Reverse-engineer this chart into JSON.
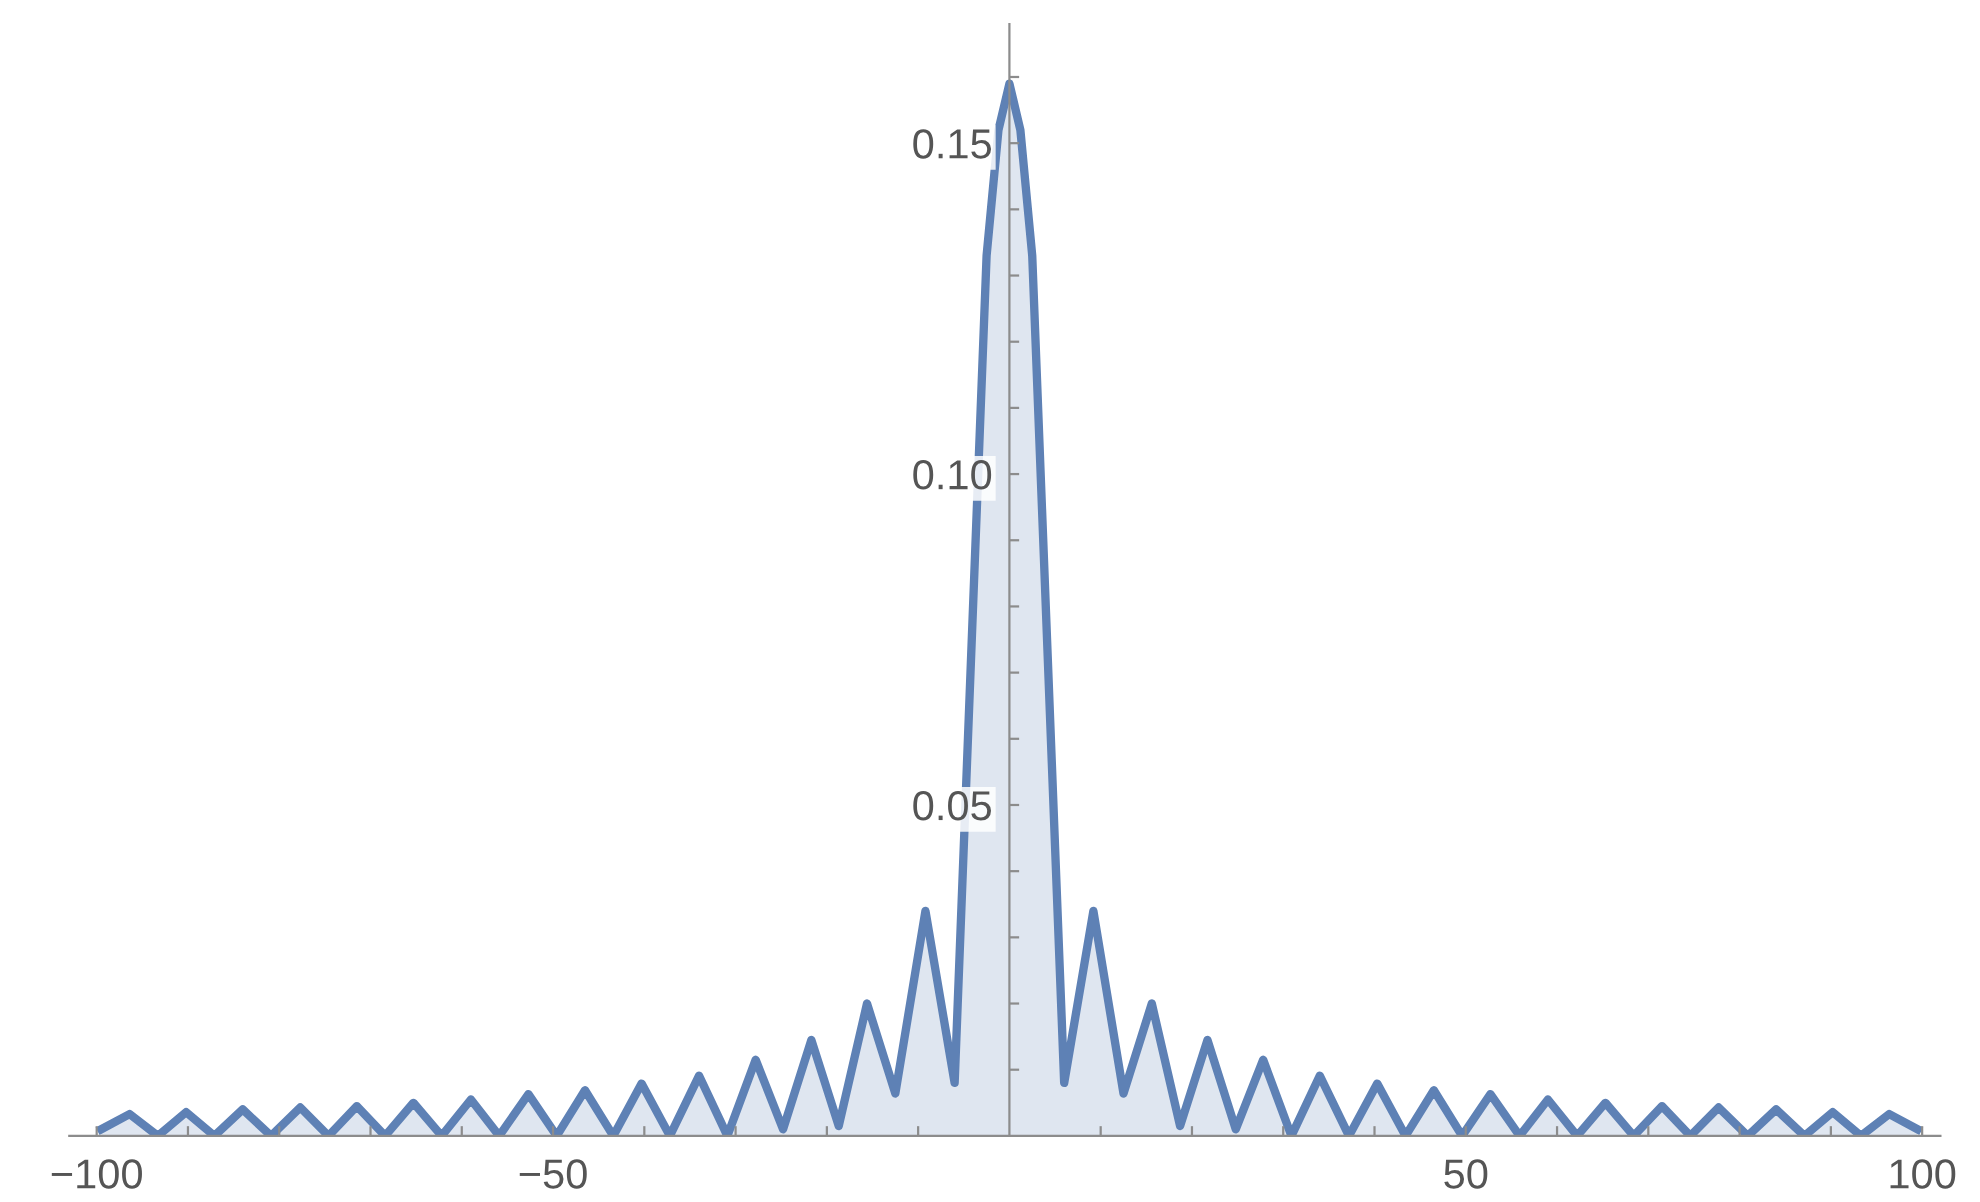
{
  "chart_data": {
    "type": "area",
    "x": [
      -99.5,
      -96.4,
      -93.3,
      -90.2,
      -87.1,
      -84,
      -80.9,
      -77.7,
      -74.6,
      -71.5,
      -68.4,
      -65.3,
      -62.2,
      -59,
      -55.9,
      -52.7,
      -49.6,
      -46.5,
      -43.4,
      -40.3,
      -37.2,
      -34,
      -30.9,
      -27.8,
      -24.8,
      -21.7,
      -18.7,
      -15.6,
      -12.5,
      -9.2,
      -6,
      -2.5,
      -1.2,
      0,
      1.2,
      2.5,
      6,
      9.2,
      12.5,
      15.6,
      18.7,
      21.7,
      24.8,
      27.8,
      30.9,
      34,
      37.2,
      40.3,
      43.4,
      46.5,
      49.6,
      52.7,
      55.9,
      59,
      62.2,
      65.3,
      68.4,
      71.5,
      74.6,
      77.7,
      80.9,
      84,
      87.1,
      90.2,
      93.3,
      96.4,
      99.5
    ],
    "series": [
      {
        "color": "#5e81b5",
        "values": [
          0.001,
          0.0033,
          0,
          0.0036,
          0,
          0.004,
          0,
          0.0043,
          0,
          0.0045,
          0,
          0.005,
          0,
          0.0055,
          0,
          0.0063,
          0,
          0.0069,
          0,
          0.0079,
          0,
          0.0091,
          0,
          0.0115,
          0.001,
          0.0145,
          0.0015,
          0.02,
          0.0064,
          0.034,
          0.008,
          0.133,
          0.152,
          0.159,
          0.152,
          0.133,
          0.008,
          0.034,
          0.0064,
          0.02,
          0.0015,
          0.0145,
          0.001,
          0.0115,
          0,
          0.0091,
          0,
          0.0079,
          0,
          0.0069,
          0,
          0.0063,
          0,
          0.0055,
          0,
          0.005,
          0,
          0.0045,
          0,
          0.0043,
          0,
          0.004,
          0,
          0.0036,
          0,
          0.0033,
          0.001
        ]
      }
    ],
    "xlim": [
      -103,
      102
    ],
    "ylim": [
      0,
      0.168
    ],
    "xticks": [
      -100,
      {
        "value": -90,
        "label": null
      },
      {
        "value": -80,
        "label": null
      },
      {
        "value": -70,
        "label": null
      },
      {
        "value": -60,
        "label": null
      },
      -50,
      {
        "value": -40,
        "label": null
      },
      {
        "value": -30,
        "label": null
      },
      {
        "value": -20,
        "label": null
      },
      {
        "value": -10,
        "label": null
      },
      {
        "value": 10,
        "label": null
      },
      {
        "value": 20,
        "label": null
      },
      {
        "value": 30,
        "label": null
      },
      {
        "value": 40,
        "label": null
      },
      50,
      {
        "value": 60,
        "label": null
      },
      {
        "value": 70,
        "label": null
      },
      {
        "value": 80,
        "label": null
      },
      {
        "value": 90,
        "label": null
      },
      100
    ],
    "yticks": [
      {
        "value": 0.01,
        "label": null
      },
      {
        "value": 0.02,
        "label": null
      },
      {
        "value": 0.03,
        "label": null
      },
      {
        "value": 0.04,
        "label": null
      },
      0.05,
      {
        "value": 0.06,
        "label": null
      },
      {
        "value": 0.07,
        "label": null
      },
      {
        "value": 0.08,
        "label": null
      },
      {
        "value": 0.09,
        "label": null
      },
      {
        "value": 0.1,
        "label": "0.10"
      },
      {
        "value": 0.11,
        "label": null
      },
      {
        "value": 0.12,
        "label": null
      },
      {
        "value": 0.13,
        "label": null
      },
      {
        "value": 0.14,
        "label": null
      },
      0.15,
      {
        "value": 0.16,
        "label": null
      }
    ],
    "grid": false
  }
}
